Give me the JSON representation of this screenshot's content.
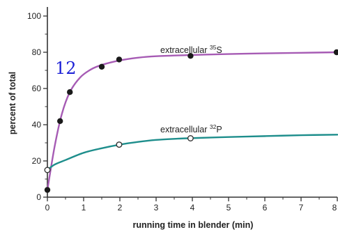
{
  "chart_data": {
    "type": "line",
    "title": "",
    "xlabel": "running time in blender (min)",
    "ylabel": "percent of total",
    "xlim": [
      0,
      8
    ],
    "ylim": [
      0,
      105
    ],
    "x_ticks": [
      "0",
      "1",
      "2",
      "3",
      "4",
      "5",
      "6",
      "7",
      "8"
    ],
    "y_ticks": [
      "0",
      "20",
      "40",
      "60",
      "80",
      "100"
    ],
    "grid": false,
    "series": [
      {
        "name": "extracellular ³⁵S",
        "name_base": "extracellular ",
        "name_sup": "35",
        "name_elem": "S",
        "color": "#a65bb4",
        "marker": "filled",
        "points": [
          [
            0,
            4
          ],
          [
            0.35,
            42
          ],
          [
            0.62,
            58
          ],
          [
            1.5,
            72
          ],
          [
            1.98,
            76
          ],
          [
            3.95,
            78
          ],
          [
            8,
            80
          ]
        ],
        "curve": [
          [
            0,
            4
          ],
          [
            0.2,
            28
          ],
          [
            0.4,
            46
          ],
          [
            0.62,
            58
          ],
          [
            0.9,
            66
          ],
          [
            1.2,
            70.5
          ],
          [
            1.5,
            73
          ],
          [
            2,
            75.5
          ],
          [
            2.5,
            77
          ],
          [
            3,
            77.8
          ],
          [
            4,
            78.5
          ],
          [
            5,
            79
          ],
          [
            6,
            79.4
          ],
          [
            7,
            79.7
          ],
          [
            8,
            80
          ]
        ]
      },
      {
        "name": "extracellular ³²P",
        "name_base": "extracellular ",
        "name_sup": "32",
        "name_elem": "P",
        "color": "#1e8e8c",
        "marker": "open",
        "points": [
          [
            0,
            15
          ],
          [
            1.98,
            29
          ],
          [
            3.95,
            32.5
          ]
        ],
        "curve": [
          [
            0,
            15
          ],
          [
            0.2,
            18
          ],
          [
            0.5,
            20.5
          ],
          [
            1,
            24.5
          ],
          [
            1.5,
            27
          ],
          [
            2,
            29
          ],
          [
            2.5,
            30.5
          ],
          [
            3,
            31.6
          ],
          [
            3.5,
            32.2
          ],
          [
            4,
            32.6
          ],
          [
            5,
            33.2
          ],
          [
            6,
            33.7
          ],
          [
            7,
            34.2
          ],
          [
            8,
            34.5
          ]
        ]
      }
    ]
  },
  "annotation": "12"
}
